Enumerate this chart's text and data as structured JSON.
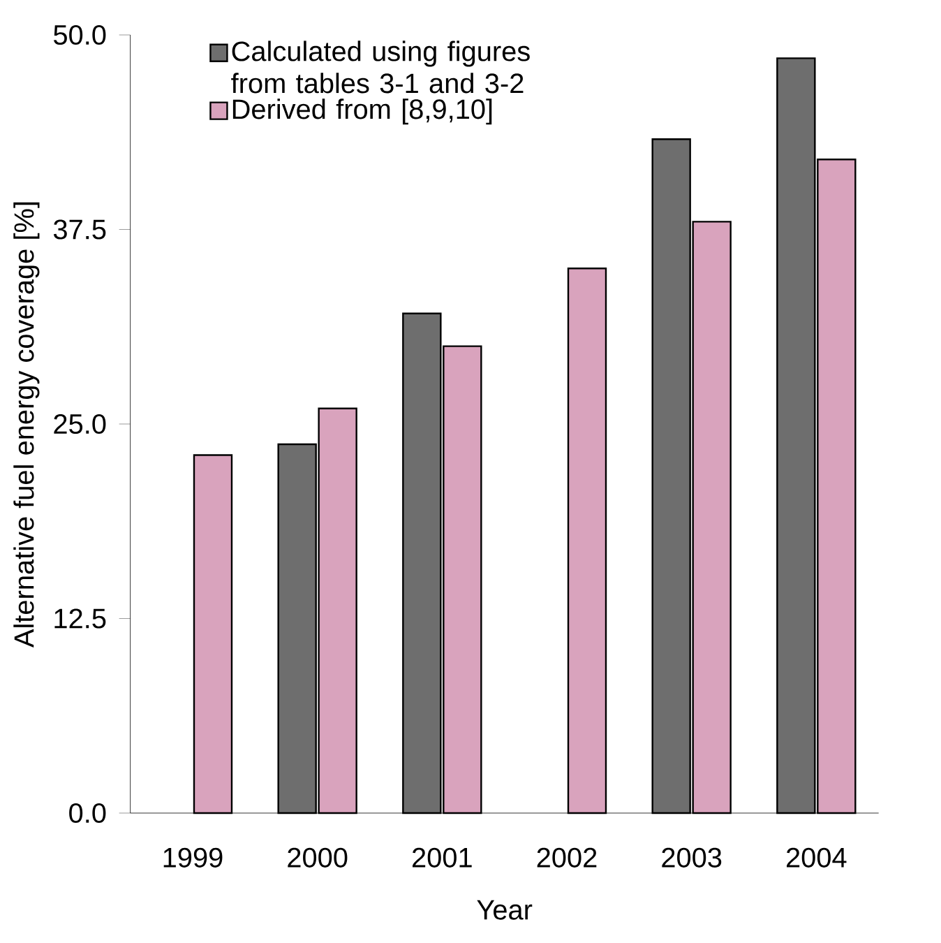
{
  "chart_data": {
    "type": "bar",
    "xlabel": "Year",
    "ylabel": "Alternative fuel energy coverage [%]",
    "categories": [
      "1999",
      "2000",
      "2001",
      "2002",
      "2003",
      "2004"
    ],
    "series": [
      {
        "name": "Calculated using figures from tables 3-1 and 3-2",
        "color": "#6e6e6e",
        "values": [
          null,
          23.7,
          32.1,
          null,
          43.3,
          48.5
        ]
      },
      {
        "name": "Derived from [8,9,10]",
        "color": "#d9a3bd",
        "values": [
          23.0,
          26.0,
          30.0,
          35.0,
          38.0,
          42.0
        ]
      }
    ],
    "ylim": [
      0,
      50
    ],
    "yticks": [
      {
        "value": 0,
        "label": "0.0"
      },
      {
        "value": 12.5,
        "label": "12.5"
      },
      {
        "value": 25,
        "label": "25.0"
      },
      {
        "value": 37.5,
        "label": "37.5"
      },
      {
        "value": 50,
        "label": "50.0"
      }
    ],
    "grid": false,
    "legend": "top left"
  }
}
